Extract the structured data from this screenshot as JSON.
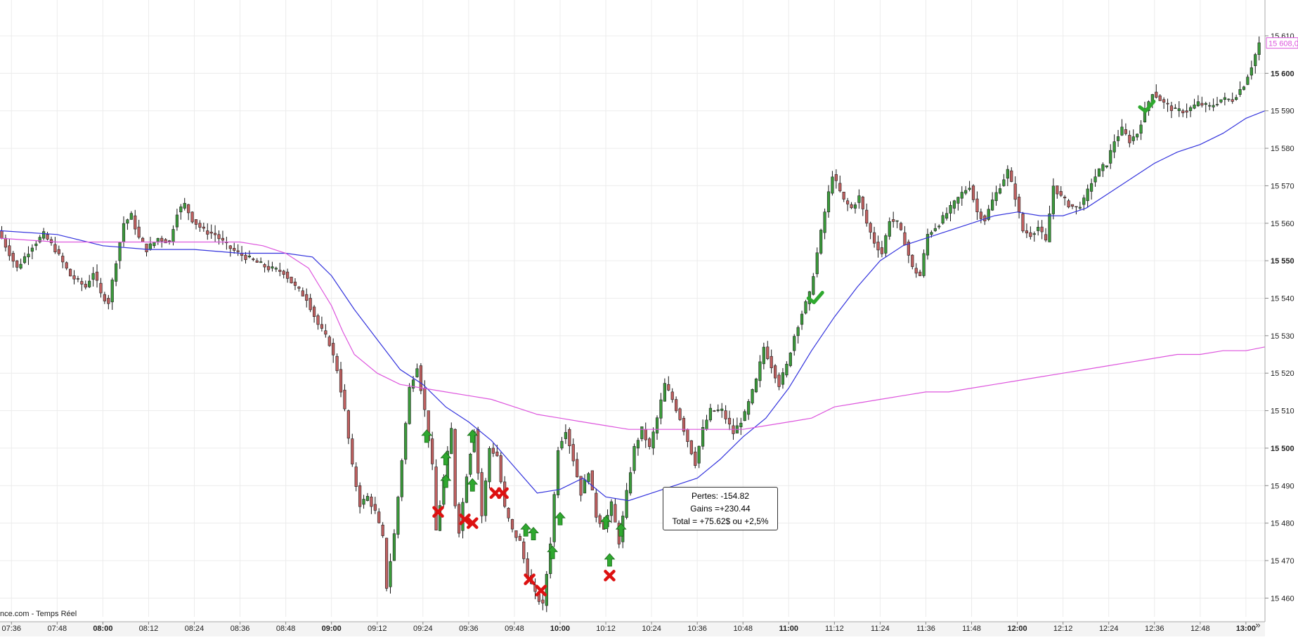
{
  "chart_data": {
    "type": "candlestick",
    "source_label": "nce.com - Temps Réel",
    "x_ticks": [
      {
        "t": "07:36",
        "bold": false
      },
      {
        "t": "07:48",
        "bold": false
      },
      {
        "t": "08:00",
        "bold": true
      },
      {
        "t": "08:12",
        "bold": false
      },
      {
        "t": "08:24",
        "bold": false
      },
      {
        "t": "08:36",
        "bold": false
      },
      {
        "t": "08:48",
        "bold": false
      },
      {
        "t": "09:00",
        "bold": true
      },
      {
        "t": "09:12",
        "bold": false
      },
      {
        "t": "09:24",
        "bold": false
      },
      {
        "t": "09:36",
        "bold": false
      },
      {
        "t": "09:48",
        "bold": false
      },
      {
        "t": "10:00",
        "bold": true
      },
      {
        "t": "10:12",
        "bold": false
      },
      {
        "t": "10:24",
        "bold": false
      },
      {
        "t": "10:36",
        "bold": false
      },
      {
        "t": "10:48",
        "bold": false
      },
      {
        "t": "11:00",
        "bold": true
      },
      {
        "t": "11:12",
        "bold": false
      },
      {
        "t": "11:24",
        "bold": false
      },
      {
        "t": "11:36",
        "bold": false
      },
      {
        "t": "11:48",
        "bold": false
      },
      {
        "t": "12:00",
        "bold": true
      },
      {
        "t": "12:12",
        "bold": false
      },
      {
        "t": "12:24",
        "bold": false
      },
      {
        "t": "12:36",
        "bold": false
      },
      {
        "t": "12:48",
        "bold": false
      },
      {
        "t": "13:00",
        "bold": true
      }
    ],
    "y_ticks": [
      {
        "label": "15 610",
        "v": 15610,
        "bold": false
      },
      {
        "label": "15 600",
        "v": 15600,
        "bold": true
      },
      {
        "label": "15 590",
        "v": 15590,
        "bold": false
      },
      {
        "label": "15 580",
        "v": 15580,
        "bold": false
      },
      {
        "label": "15 570",
        "v": 15570,
        "bold": false
      },
      {
        "label": "15 560",
        "v": 15560,
        "bold": false
      },
      {
        "label": "15 550",
        "v": 15550,
        "bold": true
      },
      {
        "label": "15 540",
        "v": 15540,
        "bold": false
      },
      {
        "label": "15 530",
        "v": 15530,
        "bold": false
      },
      {
        "label": "15 520",
        "v": 15520,
        "bold": false
      },
      {
        "label": "15 510",
        "v": 15510,
        "bold": false
      },
      {
        "label": "15 500",
        "v": 15500,
        "bold": true
      },
      {
        "label": "15 490",
        "v": 15490,
        "bold": false
      },
      {
        "label": "15 480",
        "v": 15480,
        "bold": false
      },
      {
        "label": "15 470",
        "v": 15470,
        "bold": false
      },
      {
        "label": "15 460",
        "v": 15460,
        "bold": false
      }
    ],
    "ylim": [
      15455,
      15613
    ],
    "time_range": [
      "07:33",
      "13:05"
    ],
    "last_price_label": "15 608,0",
    "last_price": 15608,
    "price_path": [
      [
        "07:33",
        15558
      ],
      [
        "07:38",
        15548
      ],
      [
        "07:42",
        15554
      ],
      [
        "07:45",
        15557
      ],
      [
        "07:48",
        15553
      ],
      [
        "07:52",
        15546
      ],
      [
        "07:56",
        15543
      ],
      [
        "07:58",
        15547
      ],
      [
        "08:00",
        15541
      ],
      [
        "08:02",
        15539
      ],
      [
        "08:04",
        15550
      ],
      [
        "08:06",
        15560
      ],
      [
        "08:08",
        15562
      ],
      [
        "08:10",
        15556
      ],
      [
        "08:12",
        15553
      ],
      [
        "08:15",
        15556
      ],
      [
        "08:18",
        15555
      ],
      [
        "08:20",
        15563
      ],
      [
        "08:22",
        15565
      ],
      [
        "08:24",
        15561
      ],
      [
        "08:27",
        15558
      ],
      [
        "08:30",
        15557
      ],
      [
        "08:33",
        15554
      ],
      [
        "08:36",
        15552
      ],
      [
        "08:40",
        15550
      ],
      [
        "08:44",
        15548
      ],
      [
        "08:48",
        15547
      ],
      [
        "08:51",
        15543
      ],
      [
        "08:54",
        15540
      ],
      [
        "08:57",
        15533
      ],
      [
        "09:00",
        15528
      ],
      [
        "09:02",
        15521
      ],
      [
        "09:04",
        15510
      ],
      [
        "09:06",
        15495
      ],
      [
        "09:08",
        15485
      ],
      [
        "09:10",
        15487
      ],
      [
        "09:12",
        15483
      ],
      [
        "09:14",
        15476
      ],
      [
        "09:15",
        15463
      ],
      [
        "09:17",
        15477
      ],
      [
        "09:19",
        15497
      ],
      [
        "09:21",
        15516
      ],
      [
        "09:23",
        15522
      ],
      [
        "09:25",
        15510
      ],
      [
        "09:27",
        15495
      ],
      [
        "09:28",
        15478
      ],
      [
        "09:30",
        15492
      ],
      [
        "09:32",
        15505
      ],
      [
        "09:33",
        15485
      ],
      [
        "09:34",
        15478
      ],
      [
        "09:36",
        15493
      ],
      [
        "09:38",
        15505
      ],
      [
        "09:40",
        15482
      ],
      [
        "09:42",
        15500
      ],
      [
        "09:44",
        15498
      ],
      [
        "09:46",
        15484
      ],
      [
        "09:48",
        15478
      ],
      [
        "09:50",
        15475
      ],
      [
        "09:52",
        15466
      ],
      [
        "09:54",
        15461
      ],
      [
        "09:56",
        15458
      ],
      [
        "09:58",
        15475
      ],
      [
        "10:00",
        15500
      ],
      [
        "10:02",
        15505
      ],
      [
        "10:04",
        15497
      ],
      [
        "10:06",
        15488
      ],
      [
        "10:08",
        15494
      ],
      [
        "10:10",
        15482
      ],
      [
        "10:12",
        15479
      ],
      [
        "10:14",
        15485
      ],
      [
        "10:16",
        15475
      ],
      [
        "10:18",
        15488
      ],
      [
        "10:20",
        15500
      ],
      [
        "10:22",
        15505
      ],
      [
        "10:24",
        15500
      ],
      [
        "10:26",
        15508
      ],
      [
        "10:28",
        15517
      ],
      [
        "10:30",
        15513
      ],
      [
        "10:32",
        15508
      ],
      [
        "10:34",
        15502
      ],
      [
        "10:36",
        15496
      ],
      [
        "10:38",
        15505
      ],
      [
        "10:40",
        15510
      ],
      [
        "10:43",
        15510
      ],
      [
        "10:46",
        15504
      ],
      [
        "10:49",
        15509
      ],
      [
        "10:52",
        15518
      ],
      [
        "10:54",
        15527
      ],
      [
        "10:56",
        15522
      ],
      [
        "10:58",
        15517
      ],
      [
        "11:00",
        15522
      ],
      [
        "11:02",
        15530
      ],
      [
        "11:04",
        15536
      ],
      [
        "11:06",
        15541
      ],
      [
        "11:08",
        15552
      ],
      [
        "11:10",
        15563
      ],
      [
        "11:12",
        15573
      ],
      [
        "11:15",
        15566
      ],
      [
        "11:17",
        15564
      ],
      [
        "11:19",
        15567
      ],
      [
        "11:21",
        15560
      ],
      [
        "11:23",
        15555
      ],
      [
        "11:25",
        15552
      ],
      [
        "11:27",
        15561
      ],
      [
        "11:29",
        15560
      ],
      [
        "11:31",
        15555
      ],
      [
        "11:33",
        15548
      ],
      [
        "11:35",
        15546
      ],
      [
        "11:37",
        15557
      ],
      [
        "11:40",
        15560
      ],
      [
        "11:43",
        15564
      ],
      [
        "11:46",
        15568
      ],
      [
        "11:48",
        15570
      ],
      [
        "11:50",
        15563
      ],
      [
        "11:52",
        15561
      ],
      [
        "11:54",
        15566
      ],
      [
        "11:56",
        15570
      ],
      [
        "11:58",
        15574
      ],
      [
        "12:00",
        15567
      ],
      [
        "12:02",
        15558
      ],
      [
        "12:04",
        15557
      ],
      [
        "12:06",
        15559
      ],
      [
        "12:08",
        15555
      ],
      [
        "12:10",
        15570
      ],
      [
        "12:12",
        15567
      ],
      [
        "12:14",
        15565
      ],
      [
        "12:16",
        15564
      ],
      [
        "12:18",
        15566
      ],
      [
        "12:20",
        15571
      ],
      [
        "12:22",
        15574
      ],
      [
        "12:24",
        15576
      ],
      [
        "12:26",
        15582
      ],
      [
        "12:28",
        15585
      ],
      [
        "12:30",
        15582
      ],
      [
        "12:32",
        15584
      ],
      [
        "12:34",
        15590
      ],
      [
        "12:36",
        15595
      ],
      [
        "12:39",
        15592
      ],
      [
        "12:42",
        15590
      ],
      [
        "12:45",
        15590
      ],
      [
        "12:48",
        15592
      ],
      [
        "12:51",
        15591
      ],
      [
        "12:54",
        15593
      ],
      [
        "12:57",
        15593
      ],
      [
        "13:00",
        15597
      ],
      [
        "13:02",
        15602
      ],
      [
        "13:04",
        15608
      ]
    ],
    "series": [
      {
        "name": "",
        "color": "#3333dd",
        "points": [
          [
            "07:33",
            15558
          ],
          [
            "07:48",
            15557
          ],
          [
            "08:00",
            15554
          ],
          [
            "08:12",
            15553
          ],
          [
            "08:24",
            15553
          ],
          [
            "08:36",
            15552
          ],
          [
            "08:48",
            15552
          ],
          [
            "08:55",
            15551
          ],
          [
            "09:00",
            15546
          ],
          [
            "09:06",
            15537
          ],
          [
            "09:12",
            15529
          ],
          [
            "09:18",
            15521
          ],
          [
            "09:24",
            15517
          ],
          [
            "09:30",
            15511
          ],
          [
            "09:36",
            15507
          ],
          [
            "09:42",
            15502
          ],
          [
            "09:48",
            15495
          ],
          [
            "09:54",
            15488
          ],
          [
            "10:00",
            15489
          ],
          [
            "10:06",
            15492
          ],
          [
            "10:12",
            15487
          ],
          [
            "10:18",
            15486
          ],
          [
            "10:24",
            15488
          ],
          [
            "10:30",
            15490
          ],
          [
            "10:36",
            15492
          ],
          [
            "10:42",
            15497
          ],
          [
            "10:48",
            15503
          ],
          [
            "10:54",
            15508
          ],
          [
            "11:00",
            15516
          ],
          [
            "11:06",
            15526
          ],
          [
            "11:12",
            15535
          ],
          [
            "11:18",
            15543
          ],
          [
            "11:24",
            15550
          ],
          [
            "11:30",
            15554
          ],
          [
            "11:36",
            15556
          ],
          [
            "11:42",
            15558
          ],
          [
            "11:48",
            15560
          ],
          [
            "11:54",
            15562
          ],
          [
            "12:00",
            15563
          ],
          [
            "12:06",
            15562
          ],
          [
            "12:12",
            15562
          ],
          [
            "12:18",
            15564
          ],
          [
            "12:24",
            15568
          ],
          [
            "12:30",
            15572
          ],
          [
            "12:36",
            15576
          ],
          [
            "12:42",
            15579
          ],
          [
            "12:48",
            15581
          ],
          [
            "12:54",
            15584
          ],
          [
            "13:00",
            15588
          ],
          [
            "13:05",
            15590
          ]
        ]
      },
      {
        "name": "",
        "color": "#dd55dd",
        "points": [
          [
            "07:33",
            15556
          ],
          [
            "07:48",
            15555
          ],
          [
            "08:00",
            15555
          ],
          [
            "08:12",
            15555
          ],
          [
            "08:24",
            15555
          ],
          [
            "08:36",
            15555
          ],
          [
            "08:42",
            15554
          ],
          [
            "08:48",
            15552
          ],
          [
            "08:54",
            15548
          ],
          [
            "08:57",
            15543
          ],
          [
            "09:00",
            15538
          ],
          [
            "09:03",
            15531
          ],
          [
            "09:06",
            15525
          ],
          [
            "09:12",
            15520
          ],
          [
            "09:18",
            15517
          ],
          [
            "09:24",
            15516
          ],
          [
            "09:30",
            15515
          ],
          [
            "09:36",
            15514
          ],
          [
            "09:42",
            15513
          ],
          [
            "09:48",
            15511
          ],
          [
            "09:54",
            15509
          ],
          [
            "10:00",
            15508
          ],
          [
            "10:06",
            15507
          ],
          [
            "10:12",
            15506
          ],
          [
            "10:18",
            15505
          ],
          [
            "10:24",
            15505
          ],
          [
            "10:30",
            15505
          ],
          [
            "10:36",
            15505
          ],
          [
            "10:42",
            15505
          ],
          [
            "10:48",
            15505
          ],
          [
            "10:54",
            15506
          ],
          [
            "11:00",
            15507
          ],
          [
            "11:06",
            15508
          ],
          [
            "11:12",
            15511
          ],
          [
            "11:18",
            15512
          ],
          [
            "11:24",
            15513
          ],
          [
            "11:30",
            15514
          ],
          [
            "11:36",
            15515
          ],
          [
            "11:42",
            15515
          ],
          [
            "11:48",
            15516
          ],
          [
            "11:54",
            15517
          ],
          [
            "12:00",
            15518
          ],
          [
            "12:06",
            15519
          ],
          [
            "12:12",
            15520
          ],
          [
            "12:18",
            15521
          ],
          [
            "12:24",
            15522
          ],
          [
            "12:30",
            15523
          ],
          [
            "12:36",
            15524
          ],
          [
            "12:42",
            15525
          ],
          [
            "12:48",
            15525
          ],
          [
            "12:54",
            15526
          ],
          [
            "13:00",
            15526
          ],
          [
            "13:05",
            15527
          ]
        ]
      }
    ],
    "buy_markers": [
      [
        "09:25",
        15503
      ],
      [
        "09:30",
        15497
      ],
      [
        "09:30",
        15491
      ],
      [
        "09:37",
        15503
      ],
      [
        "09:37",
        15490
      ],
      [
        "09:51",
        15478
      ],
      [
        "09:53",
        15477
      ],
      [
        "09:58",
        15472
      ],
      [
        "10:00",
        15481
      ],
      [
        "10:13",
        15470
      ],
      [
        "10:16",
        15478
      ],
      [
        "10:12",
        15480
      ]
    ],
    "sell_markers": [
      [
        "09:28",
        15483
      ],
      [
        "09:35",
        15481
      ],
      [
        "09:37",
        15480
      ],
      [
        "09:43",
        15488
      ],
      [
        "09:45",
        15488
      ],
      [
        "09:52",
        15465
      ],
      [
        "09:55",
        15462
      ],
      [
        "10:13",
        15466
      ]
    ],
    "check_markers": [
      [
        "11:07",
        15540
      ],
      [
        "12:34",
        15591
      ]
    ],
    "annotation": {
      "lines": [
        "Pertes: -154.82",
        "Gains =+230.44",
        "Total = +75.62$ ou +2,5%"
      ]
    },
    "grid": true,
    "colors": {
      "up": "#3a9a3a",
      "down": "#c06060",
      "marker_buy": "#2fa82f",
      "marker_sell": "#dd1111",
      "label_last": "#dd55dd"
    }
  }
}
